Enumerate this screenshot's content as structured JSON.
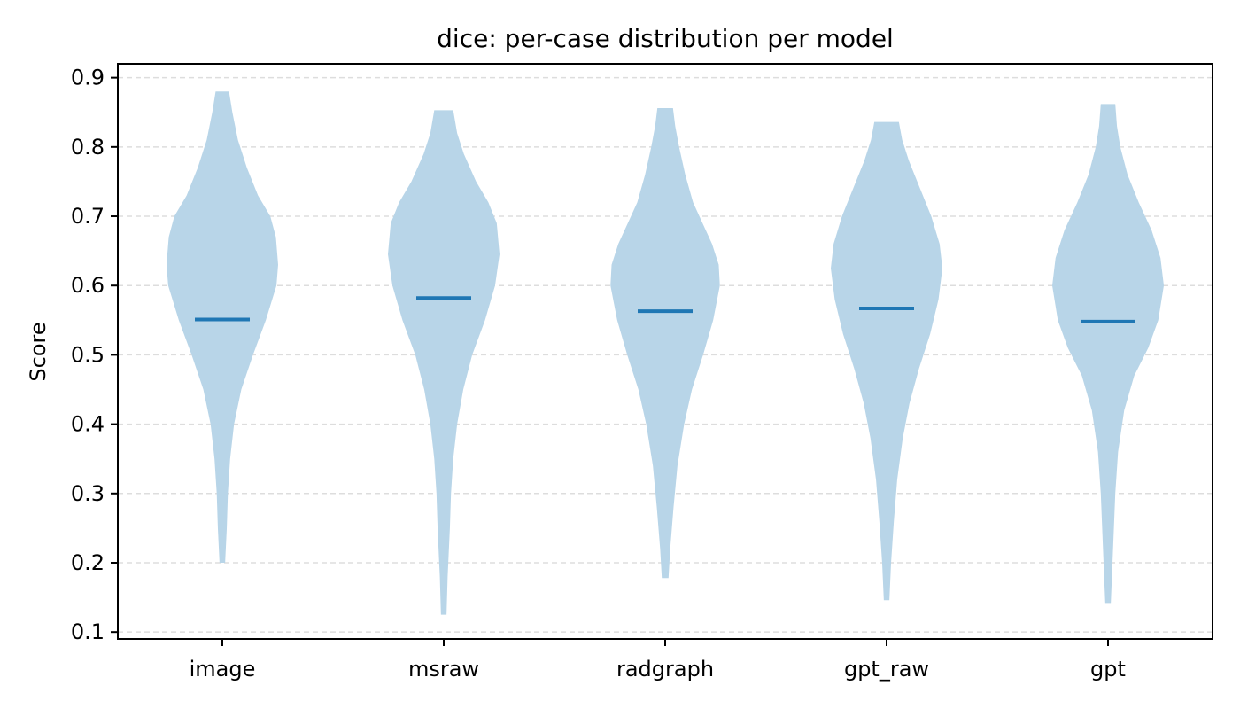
{
  "chart_data": {
    "type": "violin",
    "title": "dice: per-case distribution per model",
    "xlabel": "",
    "ylabel": "Score",
    "categories": [
      "image",
      "msraw",
      "radgraph",
      "gpt_raw",
      "gpt"
    ],
    "ylim": [
      0.09,
      0.92
    ],
    "yticks": [
      0.1,
      0.2,
      0.3,
      0.4,
      0.5,
      0.6,
      0.7,
      0.8,
      0.9
    ],
    "ytick_labels": [
      "0.1",
      "0.2",
      "0.3",
      "0.4",
      "0.5",
      "0.6",
      "0.7",
      "0.8",
      "0.9"
    ],
    "grid": "horizontal dashed",
    "colors": {
      "violin_fill": "#b8d5e8",
      "median_line": "#1f77b4",
      "grid": "#dddddd",
      "axis": "#000000"
    },
    "series": [
      {
        "category": "image",
        "min": 0.2,
        "max": 0.88,
        "median": 0.551,
        "density": [
          [
            0.2,
            0.05
          ],
          [
            0.25,
            0.08
          ],
          [
            0.3,
            0.1
          ],
          [
            0.35,
            0.14
          ],
          [
            0.4,
            0.21
          ],
          [
            0.45,
            0.34
          ],
          [
            0.5,
            0.55
          ],
          [
            0.55,
            0.78
          ],
          [
            0.6,
            0.97
          ],
          [
            0.63,
            1.0
          ],
          [
            0.67,
            0.96
          ],
          [
            0.7,
            0.86
          ],
          [
            0.73,
            0.64
          ],
          [
            0.77,
            0.44
          ],
          [
            0.81,
            0.28
          ],
          [
            0.85,
            0.18
          ],
          [
            0.88,
            0.12
          ]
        ]
      },
      {
        "category": "msraw",
        "min": 0.125,
        "max": 0.853,
        "median": 0.582,
        "density": [
          [
            0.125,
            0.05
          ],
          [
            0.18,
            0.07
          ],
          [
            0.25,
            0.11
          ],
          [
            0.3,
            0.13
          ],
          [
            0.35,
            0.17
          ],
          [
            0.4,
            0.24
          ],
          [
            0.45,
            0.35
          ],
          [
            0.5,
            0.51
          ],
          [
            0.55,
            0.74
          ],
          [
            0.6,
            0.92
          ],
          [
            0.645,
            1.0
          ],
          [
            0.69,
            0.95
          ],
          [
            0.72,
            0.8
          ],
          [
            0.75,
            0.58
          ],
          [
            0.79,
            0.36
          ],
          [
            0.82,
            0.24
          ],
          [
            0.853,
            0.17
          ]
        ]
      },
      {
        "category": "radgraph",
        "min": 0.178,
        "max": 0.856,
        "median": 0.563,
        "density": [
          [
            0.178,
            0.06
          ],
          [
            0.22,
            0.09
          ],
          [
            0.28,
            0.15
          ],
          [
            0.34,
            0.22
          ],
          [
            0.4,
            0.34
          ],
          [
            0.45,
            0.48
          ],
          [
            0.5,
            0.68
          ],
          [
            0.55,
            0.86
          ],
          [
            0.6,
            0.98
          ],
          [
            0.63,
            0.96
          ],
          [
            0.66,
            0.84
          ],
          [
            0.69,
            0.67
          ],
          [
            0.72,
            0.5
          ],
          [
            0.76,
            0.36
          ],
          [
            0.8,
            0.25
          ],
          [
            0.83,
            0.18
          ],
          [
            0.856,
            0.14
          ]
        ]
      },
      {
        "category": "gpt_raw",
        "min": 0.146,
        "max": 0.836,
        "median": 0.567,
        "density": [
          [
            0.146,
            0.05
          ],
          [
            0.2,
            0.08
          ],
          [
            0.26,
            0.13
          ],
          [
            0.32,
            0.19
          ],
          [
            0.38,
            0.29
          ],
          [
            0.43,
            0.41
          ],
          [
            0.48,
            0.58
          ],
          [
            0.53,
            0.78
          ],
          [
            0.58,
            0.93
          ],
          [
            0.625,
            1.0
          ],
          [
            0.66,
            0.95
          ],
          [
            0.7,
            0.8
          ],
          [
            0.74,
            0.6
          ],
          [
            0.78,
            0.4
          ],
          [
            0.81,
            0.28
          ],
          [
            0.836,
            0.22
          ]
        ]
      },
      {
        "category": "gpt",
        "min": 0.142,
        "max": 0.862,
        "median": 0.548,
        "density": [
          [
            0.142,
            0.05
          ],
          [
            0.18,
            0.07
          ],
          [
            0.24,
            0.1
          ],
          [
            0.3,
            0.13
          ],
          [
            0.36,
            0.18
          ],
          [
            0.42,
            0.29
          ],
          [
            0.47,
            0.47
          ],
          [
            0.51,
            0.72
          ],
          [
            0.55,
            0.9
          ],
          [
            0.6,
            1.0
          ],
          [
            0.64,
            0.94
          ],
          [
            0.68,
            0.78
          ],
          [
            0.72,
            0.55
          ],
          [
            0.76,
            0.35
          ],
          [
            0.8,
            0.22
          ],
          [
            0.83,
            0.16
          ],
          [
            0.862,
            0.13
          ]
        ]
      }
    ]
  }
}
